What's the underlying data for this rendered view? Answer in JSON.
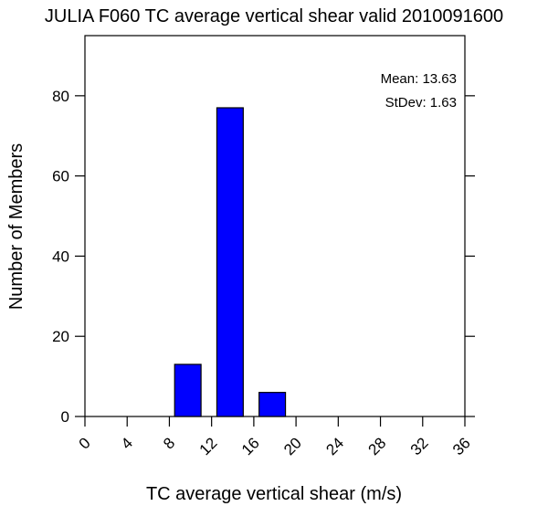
{
  "chart_data": {
    "type": "bar",
    "title": "JULIA F060 TC average vertical shear valid 2010091600",
    "xlabel": "TC average vertical shear (m/s)",
    "ylabel": "Number of Members",
    "xlim": [
      0,
      36
    ],
    "ylim": [
      0,
      95
    ],
    "xticks": [
      "0",
      "4",
      "8",
      "12",
      "16",
      "20",
      "24",
      "28",
      "32",
      "36"
    ],
    "yticks": [
      "0",
      "20",
      "40",
      "60",
      "80"
    ],
    "bins": [
      {
        "x0": 8.5,
        "x1": 11,
        "value": 13
      },
      {
        "x0": 12.5,
        "x1": 15,
        "value": 77
      },
      {
        "x0": 16.5,
        "x1": 19,
        "value": 6
      }
    ],
    "bar_color": "#0000ff",
    "stats": {
      "mean": "Mean: 13.63",
      "stdev": "StDev: 1.63"
    }
  }
}
